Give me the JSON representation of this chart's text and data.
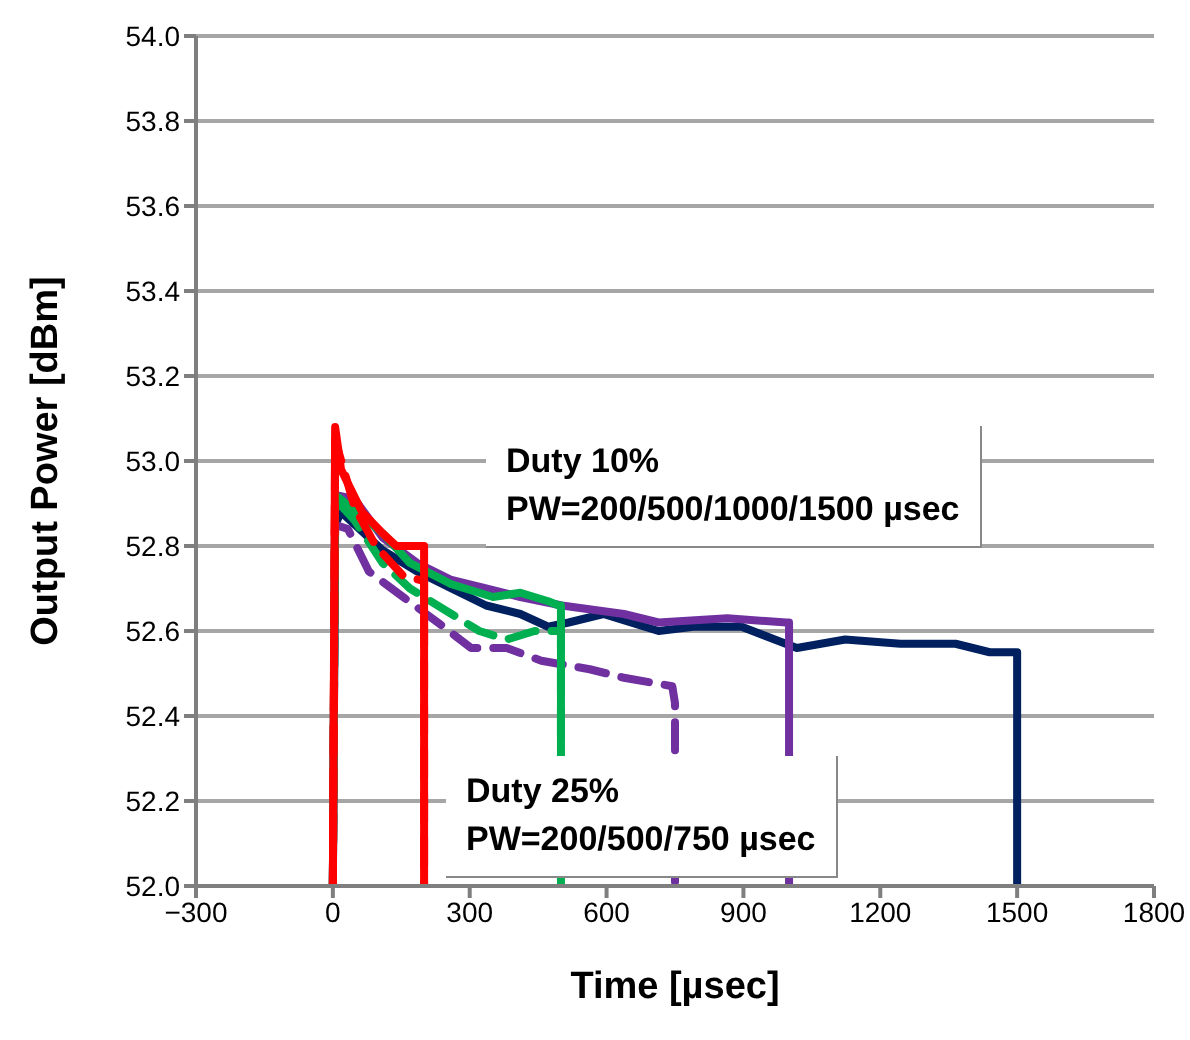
{
  "chart_data": {
    "type": "line",
    "xlabel": "Time [µsec]",
    "ylabel": "Output Power [dBm]",
    "xlim": [
      -300,
      1800
    ],
    "ylim": [
      52,
      54
    ],
    "xticks": [
      {
        "value": -300,
        "label": "−300"
      },
      0,
      300,
      600,
      900,
      1200,
      1500,
      1800
    ],
    "yticks": [
      {
        "value": 52,
        "label": "52.0"
      },
      {
        "value": 52.2,
        "label": "52.2"
      },
      {
        "value": 52.4,
        "label": "52.4"
      },
      {
        "value": 52.6,
        "label": "52.6"
      },
      {
        "value": 52.8,
        "label": "52.8"
      },
      {
        "value": 53,
        "label": "53.0"
      },
      {
        "value": 53.2,
        "label": "53.2"
      },
      {
        "value": 53.4,
        "label": "53.4"
      },
      {
        "value": 53.6,
        "label": "53.6"
      },
      {
        "value": 53.8,
        "label": "53.8"
      },
      {
        "value": 54,
        "label": "54.0"
      }
    ],
    "grid": "y",
    "legend": false,
    "marker": "none",
    "annotations": [
      "Duty 10%\nPW=200/500/1000/1500 µsec",
      "Duty 25%\nPW=200/500/750 µsec"
    ],
    "series": [
      {
        "color": "#002060",
        "line_style": "solid",
        "x": [
          0,
          5,
          18,
          109,
          185,
          260,
          336,
          411,
          472,
          517,
          593,
          714,
          790,
          896,
          1017,
          1123,
          1244,
          1365,
          1440,
          1500,
          1500
        ],
        "values": [
          52.0,
          52.85,
          52.88,
          52.79,
          52.74,
          52.7,
          52.66,
          52.64,
          52.61,
          52.62,
          52.64,
          52.6,
          52.61,
          52.61,
          52.56,
          52.58,
          52.57,
          52.57,
          52.55,
          52.55,
          52.0
        ]
      },
      {
        "color": "#7030a0",
        "line_style": "solid",
        "x": [
          0,
          5,
          48,
          109,
          185,
          260,
          336,
          411,
          502,
          638,
          714,
          865,
          994,
          1000,
          1000
        ],
        "values": [
          52.0,
          52.92,
          52.91,
          52.82,
          52.76,
          52.72,
          52.7,
          52.68,
          52.66,
          52.64,
          52.62,
          52.63,
          52.62,
          52.62,
          52.0
        ]
      },
      {
        "color": "#7030a0",
        "line_style": "dashed",
        "x": [
          0,
          5,
          33,
          79,
          154,
          230,
          303,
          381,
          457,
          563,
          638,
          744,
          750,
          750
        ],
        "values": [
          52.0,
          52.85,
          52.84,
          52.74,
          52.68,
          52.62,
          52.56,
          52.56,
          52.53,
          52.51,
          52.49,
          52.47,
          52.43,
          52.0
        ]
      },
      {
        "color": "#00b050",
        "line_style": "dashed",
        "x": [
          0,
          5,
          48,
          109,
          169,
          260,
          321,
          381,
          442,
          495,
          500,
          500
        ],
        "values": [
          52.0,
          52.91,
          52.86,
          52.76,
          52.7,
          52.64,
          52.6,
          52.58,
          52.6,
          52.6,
          52.6,
          52.0
        ]
      },
      {
        "color": "#00b050",
        "line_style": "solid",
        "x": [
          0,
          5,
          64,
          109,
          169,
          260,
          351,
          411,
          472,
          495,
          500,
          500
        ],
        "values": [
          52.0,
          52.92,
          52.87,
          52.83,
          52.76,
          52.71,
          52.68,
          52.69,
          52.67,
          52.66,
          52.66,
          52.0
        ]
      },
      {
        "color": "#ff0000",
        "line_style": "dashed",
        "x": [
          0,
          5,
          48,
          94,
          154,
          192,
          200,
          200
        ],
        "values": [
          52.0,
          53.05,
          52.89,
          52.8,
          52.73,
          52.72,
          52.72,
          52.0
        ]
      },
      {
        "color": "#ff0000",
        "line_style": "solid",
        "x": [
          0,
          5,
          18,
          64,
          109,
          139,
          192,
          200,
          200
        ],
        "values": [
          52.0,
          53.08,
          52.98,
          52.88,
          52.83,
          52.8,
          52.8,
          52.8,
          52.0
        ]
      }
    ]
  }
}
